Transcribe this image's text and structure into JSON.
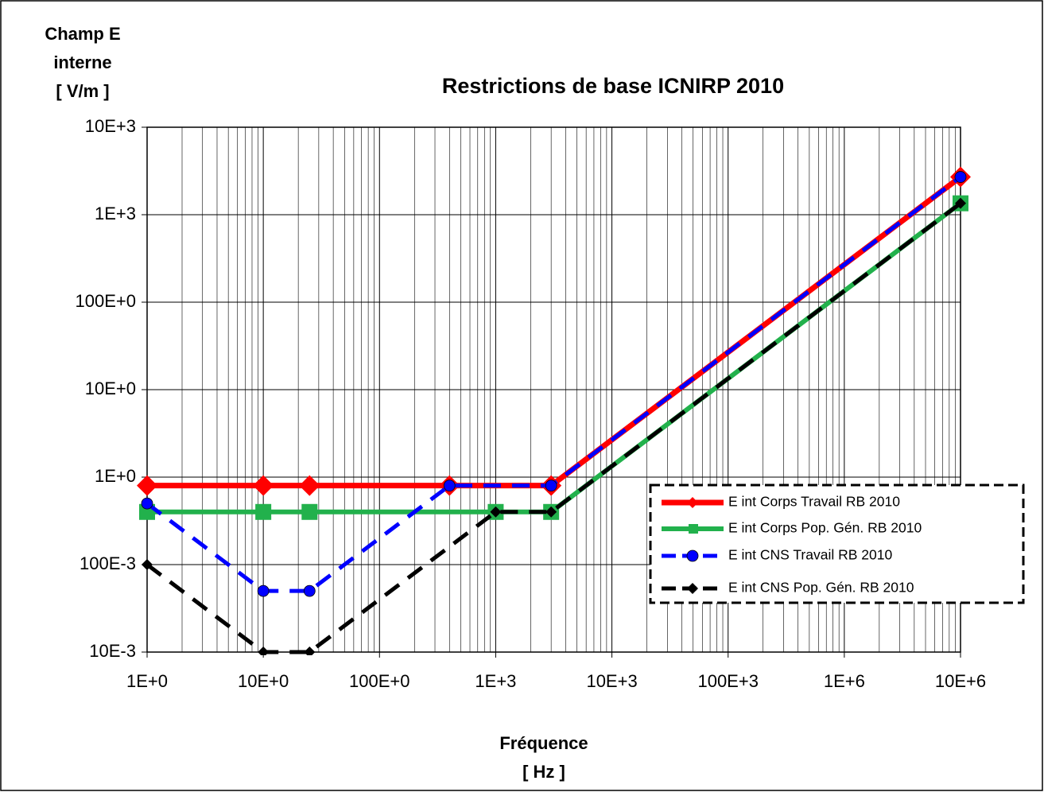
{
  "chart_data": {
    "type": "line",
    "title": "Restrictions de base ICNIRP 2010",
    "ylabel": [
      "Champ E",
      "interne",
      "[ V/m ]"
    ],
    "xlabel": [
      "Fréquence",
      "[ Hz ]"
    ],
    "xscale": "log",
    "yscale": "log",
    "grid": true,
    "minor_grid": true,
    "legend": "lower right",
    "xlim": [
      1,
      10000000
    ],
    "ylim": [
      0.01,
      10000
    ],
    "xticks": [
      {
        "value": 1,
        "label": "1E+0"
      },
      {
        "value": 10,
        "label": "10E+0"
      },
      {
        "value": 100,
        "label": "100E+0"
      },
      {
        "value": 1000,
        "label": "1E+3"
      },
      {
        "value": 10000,
        "label": "10E+3"
      },
      {
        "value": 100000,
        "label": "100E+3"
      },
      {
        "value": 1000000,
        "label": "1E+6"
      },
      {
        "value": 10000000,
        "label": "10E+6"
      }
    ],
    "yticks": [
      {
        "value": 0.01,
        "label": "10E-3"
      },
      {
        "value": 0.1,
        "label": "100E-3"
      },
      {
        "value": 1,
        "label": "1E+0"
      },
      {
        "value": 10,
        "label": "10E+0"
      },
      {
        "value": 100,
        "label": "100E+0"
      },
      {
        "value": 1000,
        "label": "1E+3"
      },
      {
        "value": 10000,
        "label": "10E+3"
      }
    ],
    "series": [
      {
        "name": "E int Corps  Travail RB 2010",
        "color": "#ff0000",
        "dashed": false,
        "marker": "diamond",
        "x": [
          1,
          10,
          25,
          400,
          3000,
          10000000
        ],
        "values": [
          0.8,
          0.8,
          0.8,
          0.8,
          0.8,
          2700
        ]
      },
      {
        "name": "E int Corps Pop. Gén. RB 2010",
        "color": "#22b14c",
        "dashed": false,
        "marker": "square",
        "x": [
          1,
          10,
          25,
          1000,
          3000,
          10000000
        ],
        "values": [
          0.4,
          0.4,
          0.4,
          0.4,
          0.4,
          1350
        ]
      },
      {
        "name": "E int CNS Travail  RB 2010",
        "color": "#0000ff",
        "dashed": true,
        "marker": "circle",
        "x": [
          1,
          10,
          25,
          400,
          3000,
          10000000
        ],
        "values": [
          0.5,
          0.05,
          0.05,
          0.8,
          0.8,
          2700
        ]
      },
      {
        "name": "E int CNS Pop. Gén. RB 2010",
        "color": "#000000",
        "dashed": true,
        "marker": "smalldiamond",
        "x": [
          1,
          10,
          25,
          1000,
          3000,
          10000000
        ],
        "values": [
          0.1,
          0.01,
          0.01,
          0.4,
          0.4,
          1350
        ]
      }
    ]
  }
}
